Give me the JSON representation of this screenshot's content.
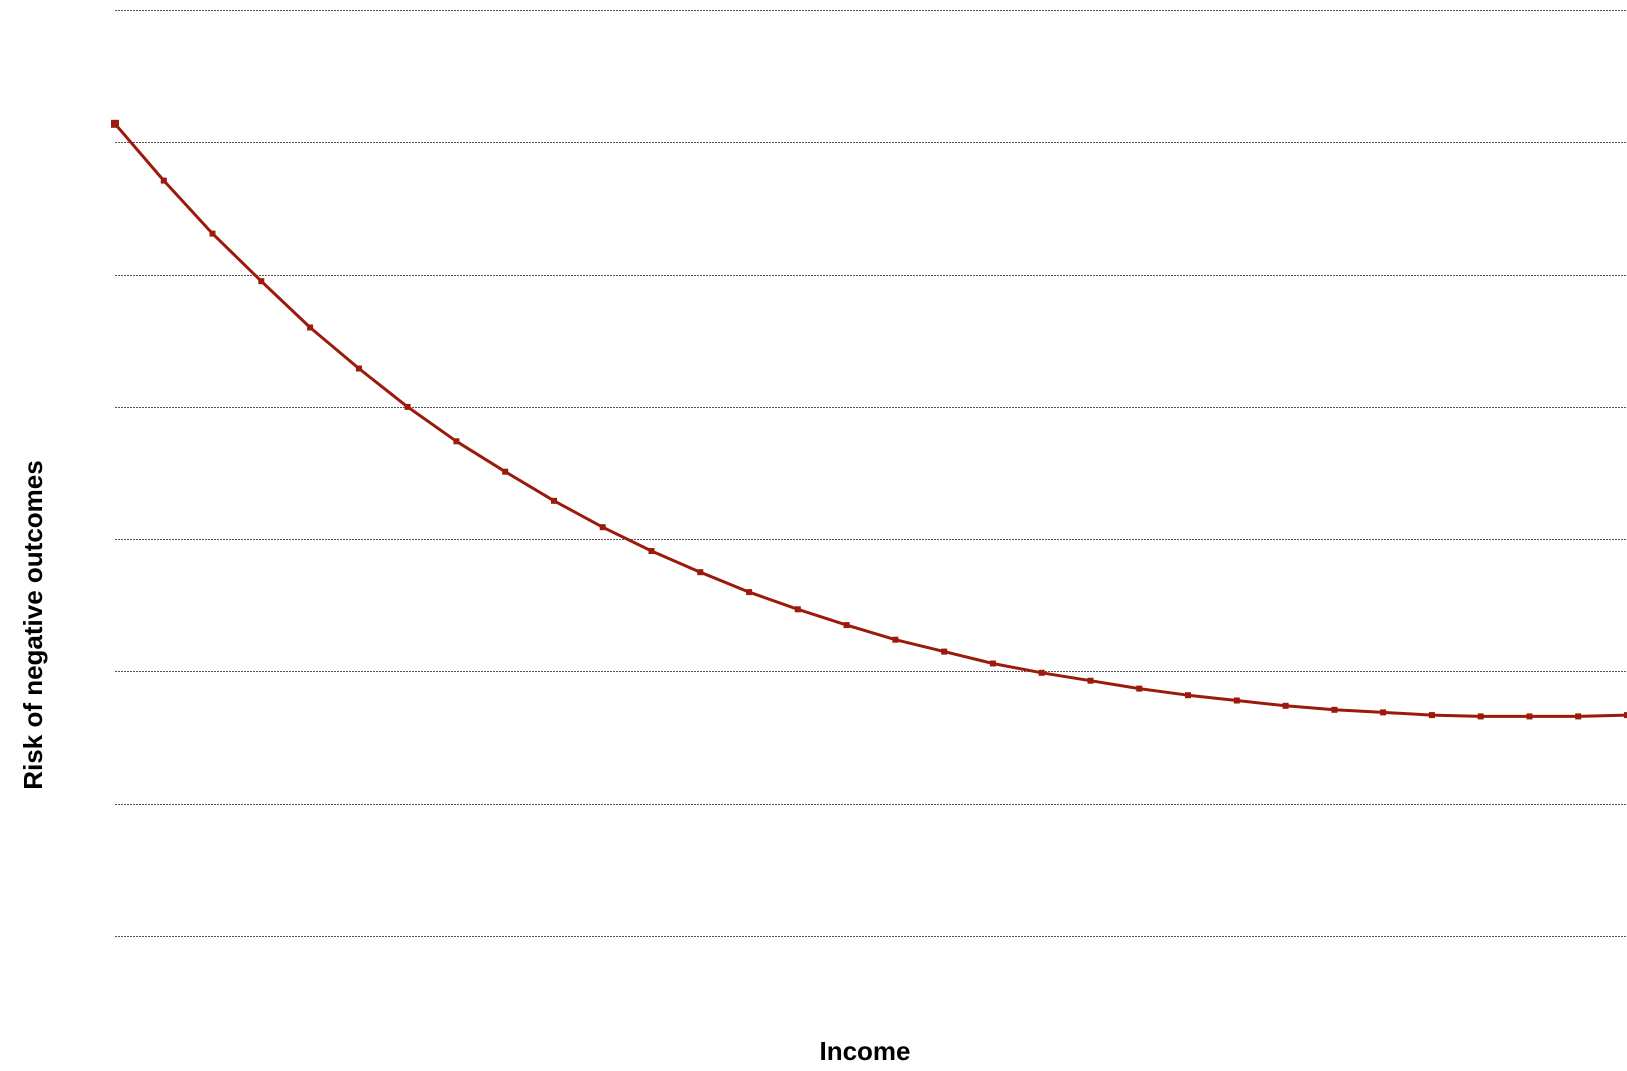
{
  "chart_data": {
    "type": "line",
    "title": "",
    "xlabel": "Income",
    "ylabel": "Risk of  negative outcomes",
    "grid": true,
    "legend": "none",
    "ylim": [
      0,
      7
    ],
    "gridlines": [
      0,
      1,
      2,
      3,
      4,
      5,
      6,
      7
    ],
    "color": "#9b1a0b",
    "series": [
      {
        "x": [
          0,
          1,
          2,
          3,
          4,
          5,
          6,
          7,
          8,
          9,
          10,
          11,
          12,
          13,
          14,
          15,
          16,
          17,
          18,
          19,
          20,
          21,
          22,
          23,
          24,
          25,
          26,
          27,
          28,
          29,
          30,
          31
        ],
        "values": [
          6.14,
          5.71,
          5.31,
          4.95,
          4.6,
          4.29,
          4.0,
          3.74,
          3.51,
          3.29,
          3.09,
          2.91,
          2.75,
          2.6,
          2.47,
          2.35,
          2.24,
          2.15,
          2.06,
          1.99,
          1.93,
          1.87,
          1.82,
          1.78,
          1.74,
          1.71,
          1.69,
          1.67,
          1.66,
          1.66,
          1.66,
          1.67
        ]
      }
    ]
  }
}
